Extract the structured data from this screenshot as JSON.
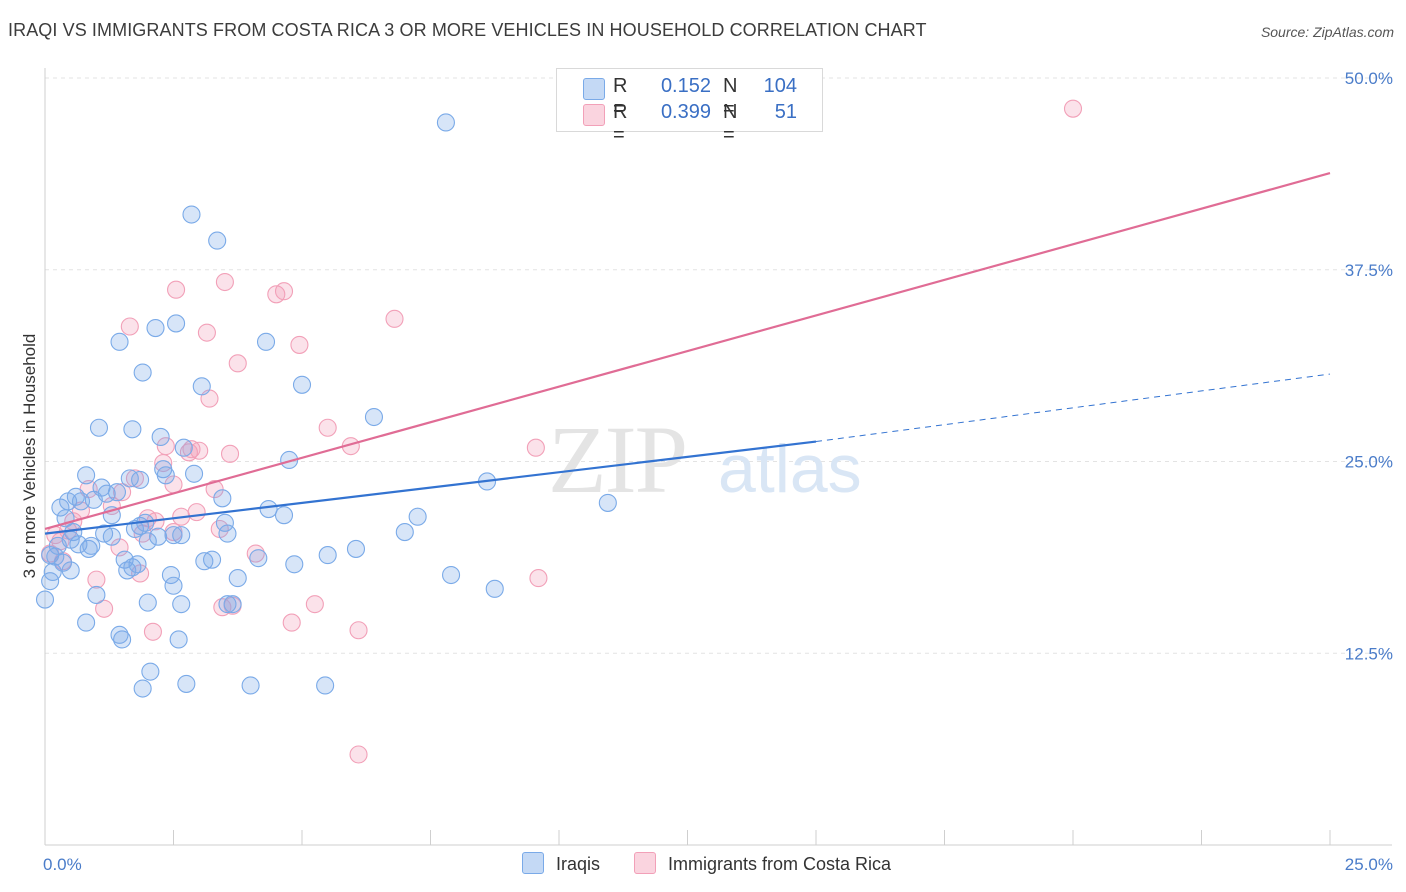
{
  "header": {
    "title": "IRAQI VS IMMIGRANTS FROM COSTA RICA 3 OR MORE VEHICLES IN HOUSEHOLD CORRELATION CHART",
    "source": "Source: ZipAtlas.com"
  },
  "watermark": {
    "zip": "ZIP",
    "atlas": "atlas"
  },
  "legend": {
    "rows": [
      {
        "r_label": "R =",
        "r_value": "0.152",
        "n_label": "N =",
        "n_value": "104",
        "color": "#7aaae8"
      },
      {
        "r_label": "R =",
        "r_value": "0.399",
        "n_label": "N =",
        "n_value": "51",
        "color": "#f2a0b8"
      }
    ]
  },
  "bottom_legend": [
    {
      "label": "Iraqis",
      "color": "#7aaae8"
    },
    {
      "label": "Immigrants from Costa Rica",
      "color": "#f2a0b8"
    }
  ],
  "chart_data": {
    "type": "scatter",
    "ylabel": "3 or more Vehicles in Household",
    "xlim": [
      0,
      25
    ],
    "ylim": [
      0,
      50
    ],
    "x_tick_labels": [
      "0.0%",
      "25.0%"
    ],
    "y_ticks": [
      12.5,
      25.0,
      37.5,
      50.0
    ],
    "y_tick_labels": [
      "12.5%",
      "25.0%",
      "37.5%",
      "50.0%"
    ],
    "grid": true,
    "legend_position": "top-center",
    "series": [
      {
        "name": "Iraqis",
        "color": "#7aaae8",
        "line_color": "#3373d1",
        "trend": {
          "x0": 0,
          "y0": 20.3,
          "x1": 15,
          "y1": 26.3,
          "dash_x1": 25,
          "dash_y1": 30.7
        },
        "points": [
          [
            0.0,
            16.0
          ],
          [
            0.1,
            17.2
          ],
          [
            0.1,
            18.9
          ],
          [
            0.15,
            17.8
          ],
          [
            0.2,
            18.8
          ],
          [
            0.25,
            19.5
          ],
          [
            0.3,
            22.0
          ],
          [
            0.35,
            18.4
          ],
          [
            0.4,
            21.3
          ],
          [
            0.45,
            22.4
          ],
          [
            0.5,
            19.9
          ],
          [
            0.5,
            17.9
          ],
          [
            0.55,
            20.4
          ],
          [
            0.6,
            22.7
          ],
          [
            0.65,
            19.6
          ],
          [
            0.7,
            22.4
          ],
          [
            0.8,
            24.1
          ],
          [
            0.8,
            14.5
          ],
          [
            0.85,
            19.3
          ],
          [
            0.9,
            19.5
          ],
          [
            0.95,
            22.5
          ],
          [
            1.0,
            16.3
          ],
          [
            1.05,
            27.2
          ],
          [
            1.1,
            23.3
          ],
          [
            1.15,
            20.3
          ],
          [
            1.2,
            22.9
          ],
          [
            1.3,
            21.5
          ],
          [
            1.3,
            20.1
          ],
          [
            1.4,
            23.0
          ],
          [
            1.45,
            32.8
          ],
          [
            1.45,
            13.7
          ],
          [
            1.5,
            13.4
          ],
          [
            1.55,
            18.6
          ],
          [
            1.6,
            17.9
          ],
          [
            1.65,
            23.9
          ],
          [
            1.7,
            18.1
          ],
          [
            1.7,
            27.1
          ],
          [
            1.75,
            20.6
          ],
          [
            1.8,
            18.3
          ],
          [
            1.85,
            20.8
          ],
          [
            1.85,
            23.8
          ],
          [
            1.9,
            30.8
          ],
          [
            1.9,
            10.2
          ],
          [
            1.95,
            21.0
          ],
          [
            2.0,
            19.8
          ],
          [
            2.0,
            15.8
          ],
          [
            2.05,
            11.3
          ],
          [
            2.15,
            33.7
          ],
          [
            2.2,
            20.1
          ],
          [
            2.25,
            26.6
          ],
          [
            2.3,
            24.5
          ],
          [
            2.35,
            24.1
          ],
          [
            2.45,
            17.6
          ],
          [
            2.5,
            20.2
          ],
          [
            2.5,
            16.9
          ],
          [
            2.55,
            34.0
          ],
          [
            2.6,
            13.4
          ],
          [
            2.65,
            20.2
          ],
          [
            2.65,
            15.7
          ],
          [
            2.7,
            25.9
          ],
          [
            2.75,
            10.5
          ],
          [
            2.85,
            41.1
          ],
          [
            2.9,
            24.2
          ],
          [
            3.05,
            29.9
          ],
          [
            3.1,
            18.5
          ],
          [
            3.25,
            18.6
          ],
          [
            3.35,
            39.4
          ],
          [
            3.45,
            22.6
          ],
          [
            3.5,
            21.0
          ],
          [
            3.55,
            20.3
          ],
          [
            3.55,
            15.7
          ],
          [
            3.65,
            15.7
          ],
          [
            3.75,
            17.4
          ],
          [
            4.0,
            10.4
          ],
          [
            4.15,
            18.7
          ],
          [
            4.3,
            32.8
          ],
          [
            4.35,
            21.9
          ],
          [
            4.65,
            21.5
          ],
          [
            4.75,
            25.1
          ],
          [
            4.85,
            18.3
          ],
          [
            5.0,
            30.0
          ],
          [
            5.45,
            10.4
          ],
          [
            5.5,
            18.9
          ],
          [
            6.05,
            19.3
          ],
          [
            6.4,
            27.9
          ],
          [
            7.0,
            20.4
          ],
          [
            7.25,
            21.4
          ],
          [
            7.8,
            47.1
          ],
          [
            7.9,
            17.6
          ],
          [
            8.6,
            23.7
          ],
          [
            8.75,
            16.7
          ],
          [
            10.95,
            22.3
          ]
        ]
      },
      {
        "name": "Immigrants from Costa Rica",
        "color": "#f2a0b8",
        "line_color": "#e06c95",
        "trend": {
          "x0": 0,
          "y0": 20.6,
          "x1": 25,
          "y1": 43.8
        },
        "points": [
          [
            0.1,
            19.0
          ],
          [
            0.2,
            20.2
          ],
          [
            0.3,
            19.8
          ],
          [
            0.35,
            18.5
          ],
          [
            0.45,
            20.5
          ],
          [
            0.55,
            21.1
          ],
          [
            0.7,
            21.8
          ],
          [
            0.85,
            23.2
          ],
          [
            1.0,
            17.3
          ],
          [
            1.15,
            15.4
          ],
          [
            1.3,
            22.1
          ],
          [
            1.45,
            19.4
          ],
          [
            1.5,
            23.0
          ],
          [
            1.65,
            33.8
          ],
          [
            1.75,
            23.9
          ],
          [
            1.85,
            17.7
          ],
          [
            1.9,
            20.3
          ],
          [
            2.0,
            21.3
          ],
          [
            2.1,
            13.9
          ],
          [
            2.15,
            21.1
          ],
          [
            2.3,
            24.9
          ],
          [
            2.35,
            26.0
          ],
          [
            2.5,
            23.5
          ],
          [
            2.5,
            20.4
          ],
          [
            2.55,
            36.2
          ],
          [
            2.65,
            21.4
          ],
          [
            2.8,
            25.6
          ],
          [
            2.85,
            25.8
          ],
          [
            2.95,
            21.7
          ],
          [
            3.0,
            25.7
          ],
          [
            3.15,
            33.4
          ],
          [
            3.2,
            29.1
          ],
          [
            3.3,
            23.2
          ],
          [
            3.4,
            20.6
          ],
          [
            3.45,
            15.5
          ],
          [
            3.5,
            36.7
          ],
          [
            3.6,
            25.5
          ],
          [
            3.65,
            15.6
          ],
          [
            3.75,
            31.4
          ],
          [
            4.1,
            19.0
          ],
          [
            4.5,
            35.9
          ],
          [
            4.65,
            36.1
          ],
          [
            4.8,
            14.5
          ],
          [
            4.95,
            32.6
          ],
          [
            5.25,
            15.7
          ],
          [
            5.5,
            27.2
          ],
          [
            5.95,
            26.0
          ],
          [
            6.1,
            14.0
          ],
          [
            6.1,
            5.9
          ],
          [
            6.8,
            34.3
          ],
          [
            9.55,
            25.9
          ],
          [
            9.6,
            17.4
          ],
          [
            20.0,
            48.0
          ]
        ]
      }
    ]
  }
}
